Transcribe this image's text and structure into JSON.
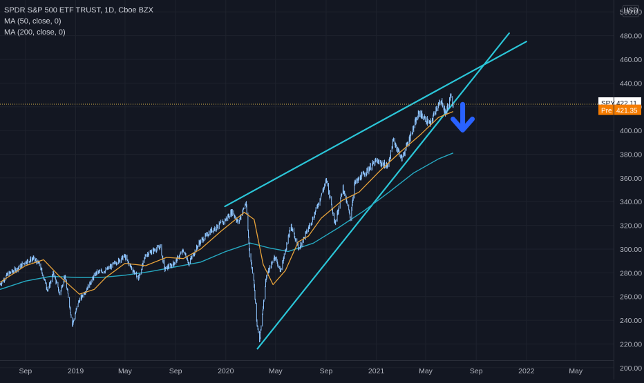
{
  "legend": {
    "title": "SPDR S&P 500 ETF TRUST, 1D, Cboe BZX",
    "ma50": "MA (50, close, 0)",
    "ma200": "MA (200, close, 0)"
  },
  "currency": "USD",
  "colors": {
    "background": "#131722",
    "grid": "#1e222d",
    "candle": "#8fc5ff",
    "ma50": "#e8a33a",
    "ma200": "#26a9c1",
    "trendline": "#2bc6d8",
    "arrow": "#2962ff",
    "last_price_line": "#e0b84c",
    "pre_badge": "#f57c00"
  },
  "chart_data": {
    "type": "line",
    "ylim": [
      190,
      510
    ],
    "y_ticks": [
      200,
      220,
      240,
      260,
      280,
      300,
      320,
      340,
      360,
      380,
      400,
      420,
      440,
      460,
      480,
      500
    ],
    "y_tick_labels": [
      "200.00",
      "220.00",
      "240.00",
      "260.00",
      "280.00",
      "300.00",
      "320.00",
      "340.00",
      "360.00",
      "380.00",
      "400.00",
      "420.00",
      "440.00",
      "460.00",
      "480.00",
      "500.00"
    ],
    "x_range": [
      "2018-07-01",
      "2022-08-01"
    ],
    "x_ticks": [
      {
        "date": "2018-09-01",
        "label": "Sep"
      },
      {
        "date": "2019-01-01",
        "label": "2019"
      },
      {
        "date": "2019-05-01",
        "label": "May"
      },
      {
        "date": "2019-09-01",
        "label": "Sep"
      },
      {
        "date": "2020-01-01",
        "label": "2020"
      },
      {
        "date": "2020-05-01",
        "label": "May"
      },
      {
        "date": "2020-09-01",
        "label": "Sep"
      },
      {
        "date": "2021-01-01",
        "label": "2021"
      },
      {
        "date": "2021-05-01",
        "label": "May"
      },
      {
        "date": "2021-09-01",
        "label": "Sep"
      },
      {
        "date": "2022-01-01",
        "label": "2022"
      },
      {
        "date": "2022-05-01",
        "label": "May"
      }
    ],
    "series": [
      {
        "name": "SPY",
        "style": "candles",
        "points": [
          [
            "2018-07-01",
            270
          ],
          [
            "2018-07-20",
            279
          ],
          [
            "2018-08-10",
            283
          ],
          [
            "2018-08-31",
            289
          ],
          [
            "2018-09-20",
            292
          ],
          [
            "2018-10-05",
            287
          ],
          [
            "2018-10-25",
            265
          ],
          [
            "2018-11-08",
            280
          ],
          [
            "2018-11-23",
            262
          ],
          [
            "2018-12-05",
            277
          ],
          [
            "2018-12-14",
            260
          ],
          [
            "2018-12-24",
            236
          ],
          [
            "2019-01-07",
            255
          ],
          [
            "2019-01-25",
            265
          ],
          [
            "2019-02-20",
            280
          ],
          [
            "2019-03-15",
            282
          ],
          [
            "2019-04-10",
            289
          ],
          [
            "2019-04-30",
            294
          ],
          [
            "2019-05-15",
            285
          ],
          [
            "2019-06-03",
            275
          ],
          [
            "2019-06-20",
            295
          ],
          [
            "2019-07-26",
            302
          ],
          [
            "2019-08-05",
            283
          ],
          [
            "2019-08-28",
            288
          ],
          [
            "2019-09-20",
            299
          ],
          [
            "2019-10-03",
            288
          ],
          [
            "2019-10-28",
            305
          ],
          [
            "2019-11-25",
            315
          ],
          [
            "2019-12-27",
            323
          ],
          [
            "2020-01-17",
            332
          ],
          [
            "2020-01-31",
            322
          ],
          [
            "2020-02-19",
            339
          ],
          [
            "2020-02-28",
            296
          ],
          [
            "2020-03-09",
            275
          ],
          [
            "2020-03-16",
            239
          ],
          [
            "2020-03-23",
            222
          ],
          [
            "2020-04-08",
            276
          ],
          [
            "2020-04-29",
            294
          ],
          [
            "2020-05-13",
            281
          ],
          [
            "2020-06-08",
            320
          ],
          [
            "2020-06-26",
            300
          ],
          [
            "2020-07-31",
            326
          ],
          [
            "2020-09-02",
            358
          ],
          [
            "2020-09-23",
            322
          ],
          [
            "2020-10-12",
            352
          ],
          [
            "2020-10-30",
            326
          ],
          [
            "2020-11-09",
            355
          ],
          [
            "2020-12-31",
            374
          ],
          [
            "2021-01-29",
            370
          ],
          [
            "2021-02-12",
            392
          ],
          [
            "2021-03-04",
            376
          ],
          [
            "2021-04-15",
            415
          ],
          [
            "2021-05-12",
            405
          ],
          [
            "2021-05-28",
            420
          ],
          [
            "2021-06-10",
            424
          ],
          [
            "2021-06-18",
            414
          ],
          [
            "2021-06-30",
            428
          ],
          [
            "2021-07-07",
            422
          ]
        ]
      },
      {
        "name": "MA (50, close, 0)",
        "style": "line",
        "points": [
          [
            "2018-07-01",
            272
          ],
          [
            "2018-09-01",
            286
          ],
          [
            "2018-10-15",
            291
          ],
          [
            "2018-11-20",
            278
          ],
          [
            "2019-01-10",
            262
          ],
          [
            "2019-02-15",
            266
          ],
          [
            "2019-03-15",
            276
          ],
          [
            "2019-05-01",
            288
          ],
          [
            "2019-06-20",
            286
          ],
          [
            "2019-08-10",
            293
          ],
          [
            "2019-09-20",
            292
          ],
          [
            "2019-11-01",
            300
          ],
          [
            "2019-12-20",
            315
          ],
          [
            "2020-02-15",
            331
          ],
          [
            "2020-03-10",
            325
          ],
          [
            "2020-04-01",
            287
          ],
          [
            "2020-04-25",
            270
          ],
          [
            "2020-05-25",
            282
          ],
          [
            "2020-06-25",
            306
          ],
          [
            "2020-07-20",
            311
          ],
          [
            "2020-08-20",
            326
          ],
          [
            "2020-10-10",
            341
          ],
          [
            "2020-11-20",
            348
          ],
          [
            "2021-01-10",
            366
          ],
          [
            "2021-03-01",
            382
          ],
          [
            "2021-04-20",
            397
          ],
          [
            "2021-06-01",
            411
          ],
          [
            "2021-07-07",
            416
          ]
        ]
      },
      {
        "name": "MA (200, close, 0)",
        "style": "line",
        "points": [
          [
            "2018-07-01",
            266
          ],
          [
            "2018-09-01",
            273
          ],
          [
            "2018-11-01",
            277
          ],
          [
            "2019-01-10",
            276
          ],
          [
            "2019-03-01",
            276
          ],
          [
            "2019-05-01",
            278
          ],
          [
            "2019-07-01",
            281
          ],
          [
            "2019-09-01",
            285
          ],
          [
            "2019-11-01",
            289
          ],
          [
            "2020-01-01",
            298
          ],
          [
            "2020-03-01",
            305
          ],
          [
            "2020-04-15",
            301
          ],
          [
            "2020-06-01",
            298
          ],
          [
            "2020-08-01",
            305
          ],
          [
            "2020-10-01",
            318
          ],
          [
            "2020-12-01",
            332
          ],
          [
            "2021-02-01",
            348
          ],
          [
            "2021-04-01",
            364
          ],
          [
            "2021-06-01",
            376
          ],
          [
            "2021-07-07",
            381
          ]
        ]
      }
    ],
    "trendlines": [
      {
        "from": [
          "2019-12-30",
          336
        ],
        "to": [
          "2022-01-01",
          475
        ]
      },
      {
        "from": [
          "2020-03-18",
          216
        ],
        "to": [
          "2021-11-20",
          482
        ]
      }
    ],
    "annotation": {
      "type": "arrow-down",
      "from": [
        "2021-07-30",
        422
      ],
      "to": [
        "2021-07-30",
        398
      ]
    },
    "last_price": {
      "label": "SPY",
      "value": "422.11",
      "y": 422.11
    },
    "pre_market": {
      "label": "Pre",
      "value": "421.35",
      "y": 421.35
    }
  }
}
